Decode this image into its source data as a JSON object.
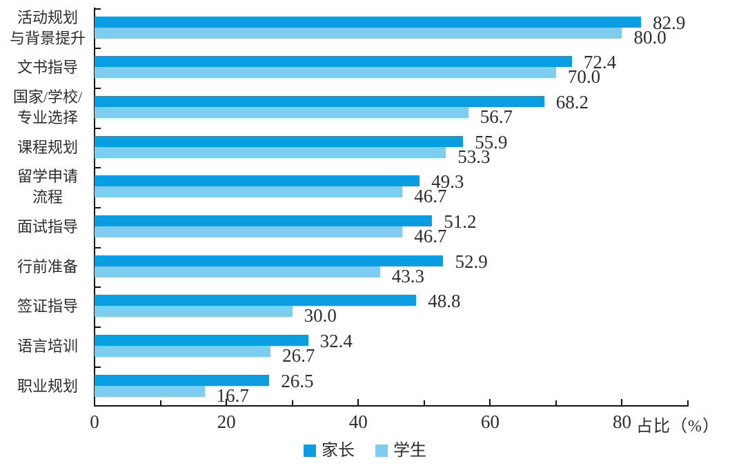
{
  "chart_data": {
    "type": "bar",
    "orientation": "horizontal",
    "title": "",
    "xlabel": "占比（%）",
    "ylabel": "",
    "xlim": [
      0,
      90
    ],
    "xticks_major": [
      0,
      20,
      40,
      60,
      80
    ],
    "xticks_minor_step": 10,
    "grid": false,
    "legend_position": "bottom",
    "value_label_decimals": 1,
    "categories": [
      [
        "活动规划",
        "与背景提升"
      ],
      [
        "文书指导"
      ],
      [
        "国家/学校/",
        "专业选择"
      ],
      [
        "课程规划"
      ],
      [
        "留学申请",
        "流程"
      ],
      [
        "面试指导"
      ],
      [
        "行前准备"
      ],
      [
        "签证指导"
      ],
      [
        "语言培训"
      ],
      [
        "职业规划"
      ]
    ],
    "series": [
      {
        "name": "家长",
        "color": "#0b9de1",
        "values": [
          82.9,
          72.4,
          68.2,
          55.9,
          49.3,
          51.2,
          52.9,
          48.8,
          32.4,
          26.5
        ]
      },
      {
        "name": "学生",
        "color": "#7fccf1",
        "values": [
          80.0,
          70.0,
          56.7,
          53.3,
          46.7,
          46.7,
          43.3,
          30.0,
          26.7,
          16.7
        ]
      }
    ]
  },
  "axis": {
    "title": "占比（%）",
    "tick_labels": [
      "0",
      "20",
      "40",
      "60",
      "80"
    ]
  },
  "legend": {
    "items": [
      {
        "label": "家长",
        "color": "#0b9de1"
      },
      {
        "label": "学生",
        "color": "#7fccf1"
      }
    ]
  },
  "colors": {
    "parents_bar": "#0b9de1",
    "students_bar": "#7fccf1",
    "axis": "#111111",
    "text": "#2d2d2d",
    "background": "#ffffff"
  }
}
